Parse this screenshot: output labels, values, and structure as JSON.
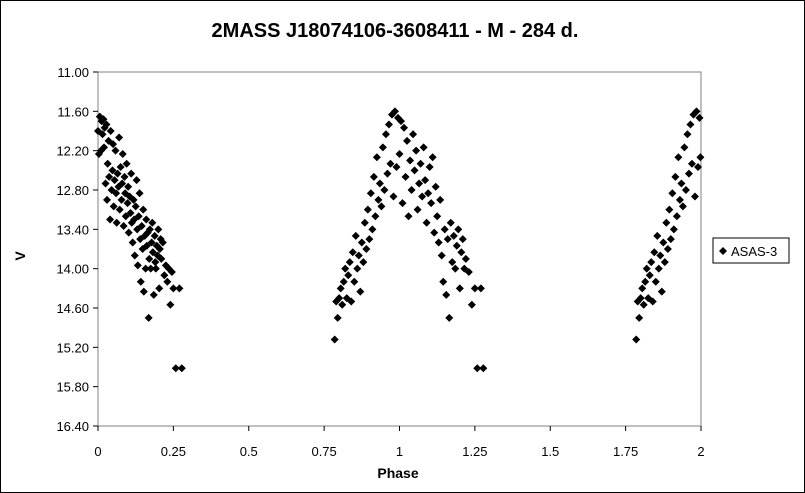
{
  "chart_data": {
    "type": "scatter",
    "title": "2MASS J18074106-3608411  - M - 284 d.",
    "xlabel": "Phase",
    "ylabel": "V",
    "xlim": [
      0,
      2
    ],
    "ylim": [
      11.0,
      16.4
    ],
    "y_inverted": true,
    "x_ticks": [
      "0",
      "0.25",
      "0.5",
      "0.75",
      "1",
      "1.25",
      "1.5",
      "1.75",
      "2"
    ],
    "y_ticks": [
      "11.00",
      "11.60",
      "12.20",
      "12.80",
      "13.40",
      "14.00",
      "14.60",
      "15.20",
      "15.80",
      "16.40"
    ],
    "grid": false,
    "legend_position": "right",
    "series": [
      {
        "name": "ASAS-3",
        "color": "#000000",
        "marker": "diamond",
        "points": [
          [
            0.0,
            11.9
          ],
          [
            0.003,
            12.25
          ],
          [
            0.006,
            11.68
          ],
          [
            0.01,
            12.2
          ],
          [
            0.012,
            11.75
          ],
          [
            0.015,
            11.95
          ],
          [
            0.018,
            11.72
          ],
          [
            0.02,
            12.15
          ],
          [
            0.022,
            11.85
          ],
          [
            0.025,
            12.7
          ],
          [
            0.028,
            11.8
          ],
          [
            0.03,
            12.95
          ],
          [
            0.032,
            12.4
          ],
          [
            0.035,
            12.05
          ],
          [
            0.037,
            12.6
          ],
          [
            0.04,
            13.25
          ],
          [
            0.042,
            11.9
          ],
          [
            0.045,
            12.8
          ],
          [
            0.048,
            12.5
          ],
          [
            0.05,
            12.1
          ],
          [
            0.052,
            13.05
          ],
          [
            0.055,
            12.65
          ],
          [
            0.058,
            12.2
          ],
          [
            0.06,
            12.85
          ],
          [
            0.062,
            13.3
          ],
          [
            0.065,
            12.55
          ],
          [
            0.068,
            12.75
          ],
          [
            0.07,
            12.0
          ],
          [
            0.072,
            13.1
          ],
          [
            0.075,
            12.45
          ],
          [
            0.078,
            12.95
          ],
          [
            0.08,
            12.7
          ],
          [
            0.082,
            12.25
          ],
          [
            0.085,
            13.35
          ],
          [
            0.088,
            12.6
          ],
          [
            0.09,
            12.85
          ],
          [
            0.092,
            13.2
          ],
          [
            0.095,
            12.4
          ],
          [
            0.098,
            13.0
          ],
          [
            0.1,
            12.75
          ],
          [
            0.102,
            13.45
          ],
          [
            0.105,
            12.9
          ],
          [
            0.108,
            13.15
          ],
          [
            0.11,
            12.55
          ],
          [
            0.112,
            13.3
          ],
          [
            0.115,
            13.6
          ],
          [
            0.118,
            12.95
          ],
          [
            0.12,
            13.25
          ],
          [
            0.122,
            13.8
          ],
          [
            0.125,
            13.05
          ],
          [
            0.128,
            12.65
          ],
          [
            0.13,
            13.4
          ],
          [
            0.132,
            13.95
          ],
          [
            0.135,
            13.2
          ],
          [
            0.138,
            12.85
          ],
          [
            0.14,
            13.55
          ],
          [
            0.142,
            14.2
          ],
          [
            0.145,
            13.35
          ],
          [
            0.148,
            13.7
          ],
          [
            0.15,
            13.1
          ],
          [
            0.152,
            14.35
          ],
          [
            0.155,
            13.5
          ],
          [
            0.158,
            14.0
          ],
          [
            0.16,
            13.25
          ],
          [
            0.162,
            13.65
          ],
          [
            0.165,
            13.45
          ],
          [
            0.168,
            14.75
          ],
          [
            0.17,
            13.85
          ],
          [
            0.172,
            13.4
          ],
          [
            0.175,
            14.0
          ],
          [
            0.178,
            13.6
          ],
          [
            0.18,
            13.3
          ],
          [
            0.182,
            13.75
          ],
          [
            0.185,
            14.4
          ],
          [
            0.188,
            13.5
          ],
          [
            0.19,
            13.9
          ],
          [
            0.192,
            14.0
          ],
          [
            0.195,
            13.65
          ],
          [
            0.198,
            13.8
          ],
          [
            0.2,
            13.4
          ],
          [
            0.203,
            14.3
          ],
          [
            0.205,
            13.7
          ],
          [
            0.208,
            13.55
          ],
          [
            0.21,
            13.85
          ],
          [
            0.215,
            13.6
          ],
          [
            0.22,
            14.1
          ],
          [
            0.225,
            13.95
          ],
          [
            0.23,
            14.2
          ],
          [
            0.235,
            14.0
          ],
          [
            0.24,
            14.55
          ],
          [
            0.245,
            14.05
          ],
          [
            0.25,
            14.3
          ],
          [
            0.258,
            15.52
          ],
          [
            0.27,
            14.3
          ],
          [
            0.278,
            15.52
          ],
          [
            0.785,
            15.08
          ],
          [
            0.79,
            14.5
          ],
          [
            0.795,
            14.75
          ],
          [
            0.8,
            14.45
          ],
          [
            0.805,
            14.3
          ],
          [
            0.81,
            14.55
          ],
          [
            0.815,
            14.2
          ],
          [
            0.82,
            14.0
          ],
          [
            0.825,
            14.45
          ],
          [
            0.83,
            14.1
          ],
          [
            0.835,
            13.9
          ],
          [
            0.84,
            14.5
          ],
          [
            0.845,
            13.75
          ],
          [
            0.85,
            14.2
          ],
          [
            0.855,
            13.5
          ],
          [
            0.86,
            14.0
          ],
          [
            0.865,
            13.8
          ],
          [
            0.87,
            14.35
          ],
          [
            0.875,
            13.6
          ],
          [
            0.88,
            13.9
          ],
          [
            0.885,
            13.3
          ],
          [
            0.89,
            13.7
          ],
          [
            0.895,
            13.1
          ],
          [
            0.9,
            13.55
          ],
          [
            0.905,
            12.85
          ],
          [
            0.91,
            13.4
          ],
          [
            0.915,
            12.6
          ],
          [
            0.92,
            13.2
          ],
          [
            0.925,
            12.3
          ],
          [
            0.93,
            12.95
          ],
          [
            0.935,
            12.7
          ],
          [
            0.94,
            13.05
          ],
          [
            0.945,
            12.15
          ],
          [
            0.95,
            12.8
          ],
          [
            0.955,
            11.95
          ],
          [
            0.96,
            12.55
          ],
          [
            0.965,
            11.8
          ],
          [
            0.97,
            12.4
          ],
          [
            0.975,
            11.65
          ],
          [
            0.98,
            12.9
          ],
          [
            0.985,
            11.6
          ],
          [
            0.99,
            12.45
          ],
          [
            0.995,
            11.7
          ],
          [
            1.0,
            12.25
          ],
          [
            1.005,
            11.75
          ],
          [
            1.01,
            13.0
          ],
          [
            1.015,
            11.85
          ],
          [
            1.02,
            12.6
          ],
          [
            1.025,
            12.05
          ],
          [
            1.03,
            13.2
          ],
          [
            1.035,
            12.35
          ],
          [
            1.04,
            12.8
          ],
          [
            1.045,
            11.95
          ],
          [
            1.05,
            12.5
          ],
          [
            1.055,
            12.2
          ],
          [
            1.06,
            13.1
          ],
          [
            1.065,
            12.7
          ],
          [
            1.07,
            12.4
          ],
          [
            1.075,
            12.9
          ],
          [
            1.08,
            12.15
          ],
          [
            1.085,
            12.65
          ],
          [
            1.09,
            13.3
          ],
          [
            1.095,
            12.85
          ],
          [
            1.1,
            12.45
          ],
          [
            1.105,
            13.0
          ],
          [
            1.11,
            12.3
          ],
          [
            1.115,
            13.45
          ],
          [
            1.12,
            12.75
          ],
          [
            1.125,
            13.2
          ],
          [
            1.13,
            13.6
          ],
          [
            1.135,
            12.95
          ],
          [
            1.14,
            13.8
          ],
          [
            1.145,
            14.2
          ],
          [
            1.15,
            13.4
          ],
          [
            1.155,
            14.4
          ],
          [
            1.16,
            13.55
          ],
          [
            1.165,
            14.75
          ],
          [
            1.17,
            13.3
          ],
          [
            1.175,
            13.9
          ],
          [
            1.18,
            13.5
          ],
          [
            1.185,
            14.0
          ],
          [
            1.19,
            13.65
          ],
          [
            1.195,
            13.4
          ],
          [
            1.2,
            14.3
          ],
          [
            1.205,
            13.75
          ],
          [
            1.21,
            13.55
          ],
          [
            1.215,
            14.0
          ],
          [
            1.22,
            13.85
          ],
          [
            1.23,
            14.05
          ],
          [
            1.24,
            14.55
          ],
          [
            1.25,
            14.3
          ],
          [
            1.258,
            15.52
          ],
          [
            1.27,
            14.3
          ],
          [
            1.278,
            15.52
          ],
          [
            1.785,
            15.08
          ],
          [
            1.79,
            14.5
          ],
          [
            1.795,
            14.75
          ],
          [
            1.8,
            14.45
          ],
          [
            1.805,
            14.3
          ],
          [
            1.81,
            14.55
          ],
          [
            1.815,
            14.2
          ],
          [
            1.82,
            14.0
          ],
          [
            1.825,
            14.45
          ],
          [
            1.83,
            14.1
          ],
          [
            1.835,
            13.9
          ],
          [
            1.84,
            14.5
          ],
          [
            1.845,
            13.75
          ],
          [
            1.85,
            14.2
          ],
          [
            1.855,
            13.5
          ],
          [
            1.86,
            14.0
          ],
          [
            1.865,
            13.8
          ],
          [
            1.87,
            14.35
          ],
          [
            1.875,
            13.6
          ],
          [
            1.88,
            13.9
          ],
          [
            1.885,
            13.3
          ],
          [
            1.89,
            13.7
          ],
          [
            1.895,
            13.1
          ],
          [
            1.9,
            13.55
          ],
          [
            1.905,
            12.85
          ],
          [
            1.91,
            13.4
          ],
          [
            1.915,
            12.6
          ],
          [
            1.92,
            13.2
          ],
          [
            1.925,
            12.3
          ],
          [
            1.93,
            12.95
          ],
          [
            1.935,
            12.7
          ],
          [
            1.94,
            13.05
          ],
          [
            1.945,
            12.15
          ],
          [
            1.95,
            12.8
          ],
          [
            1.955,
            11.95
          ],
          [
            1.96,
            12.55
          ],
          [
            1.965,
            11.8
          ],
          [
            1.97,
            12.4
          ],
          [
            1.975,
            11.65
          ],
          [
            1.98,
            12.9
          ],
          [
            1.985,
            11.6
          ],
          [
            1.99,
            12.45
          ],
          [
            1.995,
            11.7
          ],
          [
            1.998,
            12.3
          ]
        ]
      }
    ]
  }
}
